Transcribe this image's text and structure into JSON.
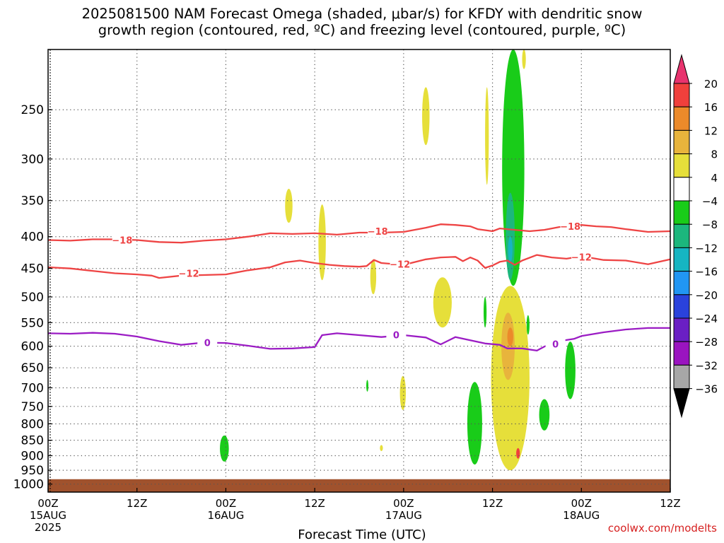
{
  "title_line1": "2025081500 NAM Forecast Omega (shaded, μbar/s) for KFDY with dendritic snow",
  "title_line2": "growth region (contoured, red, ºC) and freezing level (contoured, purple, ºC)",
  "credit": "coolwx.com/modelts",
  "chart_data": {
    "type": "time-height contour",
    "xlabel": "Forecast Time (UTC)",
    "x_hours_range": [
      0,
      84
    ],
    "x_ticks": [
      {
        "hour": 0,
        "label": "00Z",
        "sub": "15AUG",
        "sub2": "2025"
      },
      {
        "hour": 12,
        "label": "12Z",
        "sub": "",
        "sub2": ""
      },
      {
        "hour": 24,
        "label": "00Z",
        "sub": "16AUG",
        "sub2": ""
      },
      {
        "hour": 36,
        "label": "12Z",
        "sub": "",
        "sub2": ""
      },
      {
        "hour": 48,
        "label": "00Z",
        "sub": "17AUG",
        "sub2": ""
      },
      {
        "hour": 60,
        "label": "12Z",
        "sub": "",
        "sub2": ""
      },
      {
        "hour": 72,
        "label": "00Z",
        "sub": "18AUG",
        "sub2": ""
      },
      {
        "hour": 84,
        "label": "12Z",
        "sub": "",
        "sub2": ""
      }
    ],
    "y_scale": "log-pressure",
    "y_range_hpa": [
      200,
      1030
    ],
    "y_ticks_hpa": [
      250,
      300,
      350,
      400,
      450,
      500,
      550,
      600,
      650,
      700,
      750,
      800,
      850,
      900,
      950,
      1000
    ],
    "grid": "dotted",
    "surface_pressure_hpa": 982,
    "surface_color": "#a0522d",
    "colorbar": {
      "labels": [
        "20",
        "16",
        "12",
        "8",
        "4",
        "−4",
        "−8",
        "−12",
        "−16",
        "−20",
        "−24",
        "−28",
        "−32",
        "−36"
      ],
      "colors": [
        "#e8336e",
        "#f0403c",
        "#ec8a2a",
        "#e8b43c",
        "#e6df3a",
        "#ffffff",
        "#19cc19",
        "#1cb77d",
        "#16b5c2",
        "#2196f3",
        "#2a42dc",
        "#6a1fc4",
        "#9a14c0",
        "#a7a7a7",
        "#000000"
      ]
    },
    "contours": [
      {
        "series": "-18 ºC",
        "label": "−18",
        "color": "#ee4444",
        "points": [
          [
            0,
            405
          ],
          [
            3,
            406
          ],
          [
            6,
            404
          ],
          [
            9,
            404
          ],
          [
            12,
            405
          ],
          [
            15,
            408
          ],
          [
            18,
            409
          ],
          [
            21,
            406
          ],
          [
            24,
            404
          ],
          [
            27,
            400
          ],
          [
            30,
            395
          ],
          [
            33,
            396
          ],
          [
            36,
            395
          ],
          [
            39,
            397
          ],
          [
            42,
            394
          ],
          [
            45,
            394
          ],
          [
            48,
            393
          ],
          [
            51,
            387
          ],
          [
            53,
            382
          ],
          [
            55,
            383
          ],
          [
            57,
            385
          ],
          [
            58,
            389
          ],
          [
            60,
            392
          ],
          [
            61,
            388
          ],
          [
            63,
            390
          ],
          [
            65,
            392
          ],
          [
            67,
            390
          ],
          [
            69,
            386
          ],
          [
            72,
            383
          ],
          [
            74,
            385
          ],
          [
            76,
            386
          ],
          [
            78,
            389
          ],
          [
            81,
            393
          ],
          [
            84,
            392
          ]
        ],
        "labels_at": [
          [
            10,
            405
          ],
          [
            44.5,
            392
          ],
          [
            70.5,
            385
          ]
        ]
      },
      {
        "series": "-12 ºC",
        "label": "−12",
        "color": "#ee4444",
        "points": [
          [
            0,
            448
          ],
          [
            3,
            450
          ],
          [
            6,
            454
          ],
          [
            9,
            458
          ],
          [
            12,
            460
          ],
          [
            14,
            462
          ],
          [
            15,
            466
          ],
          [
            18,
            462
          ],
          [
            21,
            461
          ],
          [
            24,
            460
          ],
          [
            27,
            453
          ],
          [
            30,
            448
          ],
          [
            32,
            440
          ],
          [
            34,
            437
          ],
          [
            36,
            441
          ],
          [
            38,
            444
          ],
          [
            40,
            446
          ],
          [
            42,
            447
          ],
          [
            43,
            446
          ],
          [
            44,
            436
          ],
          [
            45,
            441
          ],
          [
            48,
            444
          ],
          [
            51,
            435
          ],
          [
            53,
            432
          ],
          [
            55,
            431
          ],
          [
            56,
            438
          ],
          [
            57,
            432
          ],
          [
            58,
            437
          ],
          [
            59,
            449
          ],
          [
            60,
            445
          ],
          [
            61,
            439
          ],
          [
            62,
            437
          ],
          [
            63,
            444
          ],
          [
            64,
            437
          ],
          [
            66,
            428
          ],
          [
            68,
            432
          ],
          [
            70,
            434
          ],
          [
            72,
            430
          ],
          [
            75,
            436
          ],
          [
            78,
            437
          ],
          [
            81,
            443
          ],
          [
            84,
            435
          ]
        ],
        "labels_at": [
          [
            19,
            458
          ],
          [
            47.5,
            443
          ],
          [
            72,
            431
          ]
        ]
      },
      {
        "series": "0 ºC",
        "label": "0",
        "color": "#9b1cc4",
        "points": [
          [
            0,
            572
          ],
          [
            3,
            573
          ],
          [
            6,
            571
          ],
          [
            9,
            573
          ],
          [
            12,
            579
          ],
          [
            15,
            589
          ],
          [
            18,
            597
          ],
          [
            21,
            592
          ],
          [
            24,
            593
          ],
          [
            27,
            599
          ],
          [
            30,
            606
          ],
          [
            33,
            605
          ],
          [
            36,
            602
          ],
          [
            37,
            576
          ],
          [
            39,
            572
          ],
          [
            42,
            576
          ],
          [
            45,
            580
          ],
          [
            48,
            576
          ],
          [
            51,
            581
          ],
          [
            53,
            596
          ],
          [
            55,
            580
          ],
          [
            57,
            587
          ],
          [
            59,
            594
          ],
          [
            61,
            597
          ],
          [
            62,
            605
          ],
          [
            64,
            605
          ],
          [
            66,
            610
          ],
          [
            67,
            601
          ],
          [
            69,
            589
          ],
          [
            71,
            584
          ],
          [
            72,
            578
          ],
          [
            75,
            570
          ],
          [
            78,
            564
          ],
          [
            81,
            561
          ],
          [
            84,
            561
          ]
        ],
        "labels_at": [
          [
            21.5,
            592
          ],
          [
            47,
            575
          ],
          [
            68.5,
            595
          ]
        ]
      }
    ],
    "omega_regions": [
      {
        "value_range": "4 to 8",
        "color": "#e6df3a",
        "hour": [
          32,
          33
        ],
        "hpa": [
          335,
          380
        ]
      },
      {
        "value_range": "4 to 8",
        "color": "#e6df3a",
        "hour": [
          36.5,
          37.5
        ],
        "hpa": [
          355,
          470
        ]
      },
      {
        "value_range": "4 to 8",
        "color": "#e6df3a",
        "hour": [
          43.5,
          44.3
        ],
        "hpa": [
          435,
          495
        ]
      },
      {
        "value_range": "4 to 8",
        "color": "#e6df3a",
        "hour": [
          50.5,
          51.5
        ],
        "hpa": [
          230,
          285
        ]
      },
      {
        "value_range": "4 to 8",
        "color": "#e6df3a",
        "hour": [
          52,
          54.5
        ],
        "hpa": [
          465,
          560
        ]
      },
      {
        "value_range": "4 to 8",
        "color": "#e6df3a",
        "hour": [
          47.5,
          48.3
        ],
        "hpa": [
          670,
          760
        ]
      },
      {
        "value_range": "4 to 8",
        "color": "#e6df3a",
        "hour": [
          44.8,
          45.2
        ],
        "hpa": [
          865,
          885
        ]
      },
      {
        "value_range": "4 to 8",
        "color": "#e6df3a",
        "hour": [
          59,
          59.5
        ],
        "hpa": [
          230,
          330
        ]
      },
      {
        "value_range": "4 to 8",
        "color": "#e6df3a",
        "hour": [
          59.8,
          65
        ],
        "hpa": [
          480,
          950
        ]
      },
      {
        "value_range": "4 to 8",
        "color": "#e6df3a",
        "hour": [
          64,
          64.5
        ],
        "hpa": [
          200,
          215
        ]
      },
      {
        "value_range": "8 to 12",
        "color": "#e8b43c",
        "hour": [
          61.2,
          63
        ],
        "hpa": [
          530,
          680
        ]
      },
      {
        "value_range": "12 to 16",
        "color": "#ec8a2a",
        "hour": [
          62,
          62.8
        ],
        "hpa": [
          560,
          600
        ]
      },
      {
        "value_range": "16 to 20",
        "color": "#f0403c",
        "hour": [
          63.2,
          63.7
        ],
        "hpa": [
          875,
          910
        ]
      },
      {
        "value_range": "-4 to -8",
        "color": "#19cc19",
        "hour": [
          23.2,
          24.4
        ],
        "hpa": [
          835,
          920
        ]
      },
      {
        "value_range": "-4 to -8",
        "color": "#19cc19",
        "hour": [
          43,
          43.2
        ],
        "hpa": [
          680,
          710
        ]
      },
      {
        "value_range": "-4 to -8",
        "color": "#19cc19",
        "hour": [
          56.6,
          58.6
        ],
        "hpa": [
          685,
          930
        ]
      },
      {
        "value_range": "-4 to -8",
        "color": "#19cc19",
        "hour": [
          58.8,
          59.2
        ],
        "hpa": [
          500,
          560
        ]
      },
      {
        "value_range": "-4 to -8",
        "color": "#19cc19",
        "hour": [
          61.3,
          64.3
        ],
        "hpa": [
          200,
          480
        ]
      },
      {
        "value_range": "-4 to -8",
        "color": "#19cc19",
        "hour": [
          64.6,
          65
        ],
        "hpa": [
          535,
          575
        ]
      },
      {
        "value_range": "-4 to -8",
        "color": "#19cc19",
        "hour": [
          66.3,
          67.7
        ],
        "hpa": [
          730,
          820
        ]
      },
      {
        "value_range": "-4 to -8",
        "color": "#19cc19",
        "hour": [
          69.8,
          71.2
        ],
        "hpa": [
          590,
          730
        ]
      },
      {
        "value_range": "-8 to -12",
        "color": "#1cb77d",
        "hour": [
          61.8,
          63
        ],
        "hpa": [
          340,
          470
        ]
      },
      {
        "value_range": "-12 to -16",
        "color": "#16b5c2",
        "hour": [
          62.1,
          62.7
        ],
        "hpa": [
          400,
          440
        ]
      }
    ]
  }
}
